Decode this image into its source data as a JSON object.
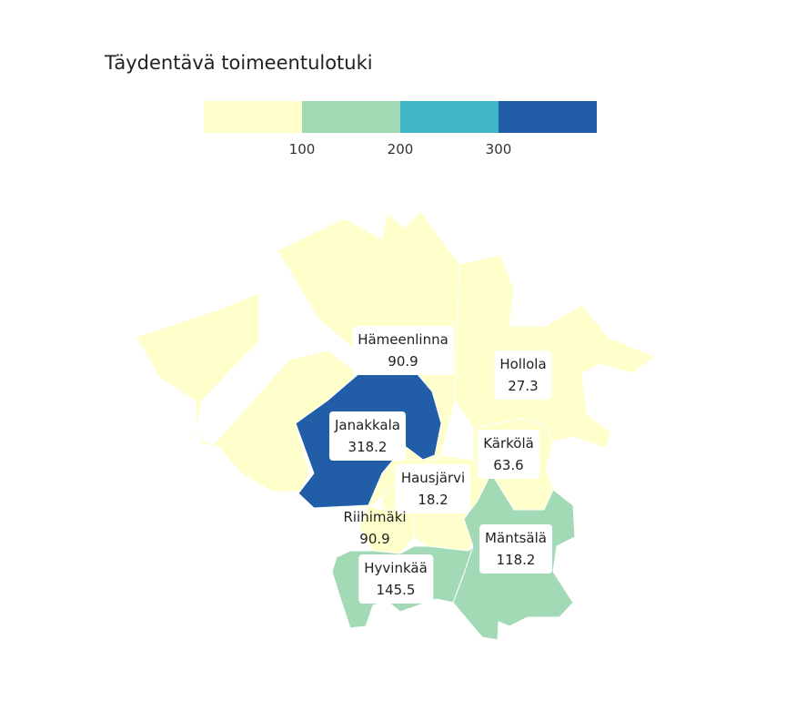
{
  "title": "Täydentävä toimeentulotuki",
  "legend": {
    "colors": [
      "#ffffcc",
      "#a1dab4",
      "#41b6c4",
      "#225ea8"
    ],
    "ticks": [
      "100",
      "200",
      "300"
    ]
  },
  "regions": [
    {
      "name": "Hämeenlinna",
      "value": "90.9",
      "color": "#ffffcc"
    },
    {
      "name": "Hollola",
      "value": "27.3",
      "color": "#ffffcc"
    },
    {
      "name": "Janakkala",
      "value": "318.2",
      "color": "#225ea8"
    },
    {
      "name": "Kärkölä",
      "value": "63.6",
      "color": "#ffffcc"
    },
    {
      "name": "Hausjärvi",
      "value": "18.2",
      "color": "#ffffcc"
    },
    {
      "name": "Riihimäki",
      "value": "90.9",
      "color": "#ffffcc"
    },
    {
      "name": "Mäntsälä",
      "value": "118.2",
      "color": "#a1dab4"
    },
    {
      "name": "Hyvinkää",
      "value": "145.5",
      "color": "#a1dab4"
    }
  ]
}
